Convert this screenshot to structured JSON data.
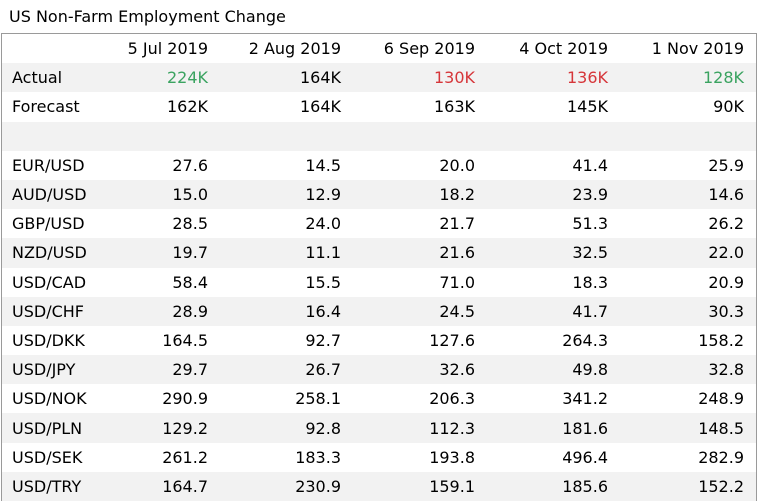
{
  "title": "US Non-Farm Employment Change",
  "columns": [
    "5 Jul 2019",
    "2 Aug 2019",
    "6 Sep 2019",
    "4 Oct 2019",
    "1 Nov 2019"
  ],
  "colors": {
    "positive": "#3aa360",
    "negative": "#d6363a",
    "stripe": "#f2f2f2"
  },
  "actual": {
    "label": "Actual",
    "values": [
      "224K",
      "164K",
      "130K",
      "136K",
      "128K"
    ],
    "tones": [
      "green",
      "",
      "red",
      "red",
      "green"
    ]
  },
  "forecast": {
    "label": "Forecast",
    "values": [
      "162K",
      "164K",
      "163K",
      "145K",
      "90K"
    ]
  },
  "rows": [
    {
      "pair": "EUR/USD",
      "values": [
        "27.6",
        "14.5",
        "20.0",
        "41.4",
        "25.9"
      ]
    },
    {
      "pair": "AUD/USD",
      "values": [
        "15.0",
        "12.9",
        "18.2",
        "23.9",
        "14.6"
      ]
    },
    {
      "pair": "GBP/USD",
      "values": [
        "28.5",
        "24.0",
        "21.7",
        "51.3",
        "26.2"
      ]
    },
    {
      "pair": "NZD/USD",
      "values": [
        "19.7",
        "11.1",
        "21.6",
        "32.5",
        "22.0"
      ]
    },
    {
      "pair": "USD/CAD",
      "values": [
        "58.4",
        "15.5",
        "71.0",
        "18.3",
        "20.9"
      ]
    },
    {
      "pair": "USD/CHF",
      "values": [
        "28.9",
        "16.4",
        "24.5",
        "41.7",
        "30.3"
      ]
    },
    {
      "pair": "USD/DKK",
      "values": [
        "164.5",
        "92.7",
        "127.6",
        "264.3",
        "158.2"
      ]
    },
    {
      "pair": "USD/JPY",
      "values": [
        "29.7",
        "26.7",
        "32.6",
        "49.8",
        "32.8"
      ]
    },
    {
      "pair": "USD/NOK",
      "values": [
        "290.9",
        "258.1",
        "206.3",
        "341.2",
        "248.9"
      ]
    },
    {
      "pair": "USD/PLN",
      "values": [
        "129.2",
        "92.8",
        "112.3",
        "181.6",
        "148.5"
      ]
    },
    {
      "pair": "USD/SEK",
      "values": [
        "261.2",
        "183.3",
        "193.8",
        "496.4",
        "282.9"
      ]
    },
    {
      "pair": "USD/TRY",
      "values": [
        "164.7",
        "230.9",
        "159.1",
        "185.6",
        "152.2"
      ]
    }
  ]
}
